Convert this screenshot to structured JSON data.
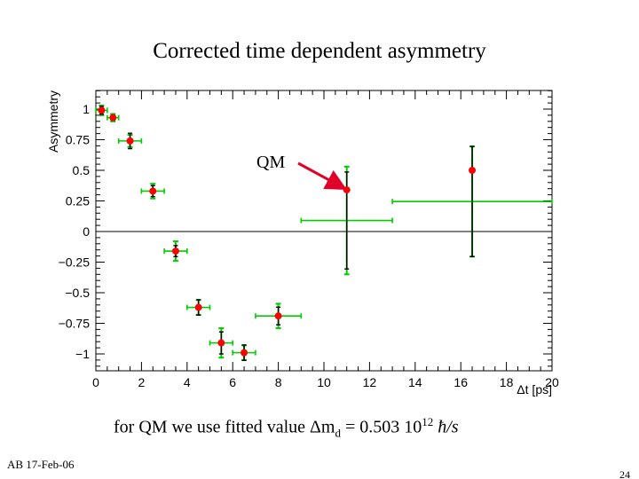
{
  "slide": {
    "title": "Corrected time dependent asymmetry",
    "caption": {
      "prefix": "for QM we use fitted value ",
      "delta": "Δm",
      "sub": "d",
      "equals": " = 0.503 10",
      "exp": "12",
      "units": " ħ/s"
    },
    "footer_left": "AB 17-Feb-06",
    "page_number": "24"
  },
  "colors": {
    "point": "#ff0000",
    "green_error": "#00cc00",
    "black_error": "#000000",
    "zero_line": "#000000",
    "arrow": "#e0002a"
  },
  "chart_data": {
    "type": "scatter",
    "title": "Corrected time dependent asymmetry",
    "xlabel": "Δt [ps]",
    "ylabel": "Asymmetry",
    "xlim": [
      0,
      20
    ],
    "ylim": [
      -1.1,
      1.15
    ],
    "x_ticks": [
      0,
      2,
      4,
      6,
      8,
      10,
      12,
      14,
      16,
      18,
      20
    ],
    "x_tick_labels": [
      "0",
      "2",
      "4",
      "6",
      "8",
      "10",
      "12",
      "14",
      "16",
      "18",
      "20"
    ],
    "y_ticks": [
      1,
      0.75,
      0.5,
      0.25,
      0,
      -0.25,
      -0.5,
      -0.75,
      -1
    ],
    "y_tick_labels": [
      "1",
      "0.75",
      "0.5",
      "0.25",
      "0",
      "−0.25",
      "−0.5",
      "−0.75",
      "−1"
    ],
    "zero_line": true,
    "points": [
      {
        "x": 0.25,
        "y": 0.99,
        "xerr": 0.25,
        "yerr_black": 0.035,
        "yerr_green": 0.04
      },
      {
        "x": 0.75,
        "y": 0.93,
        "xerr": 0.25,
        "yerr_black": 0.025,
        "yerr_green": 0.03
      },
      {
        "x": 1.5,
        "y": 0.74,
        "xerr": 0.5,
        "yerr_black": 0.07,
        "yerr_green": 0.05
      },
      {
        "x": 2.5,
        "y": 0.33,
        "xerr": 0.5,
        "yerr_black": 0.05,
        "yerr_green": 0.06
      },
      {
        "x": 3.5,
        "y": -0.16,
        "xerr": 0.5,
        "yerr_black": 0.05,
        "yerr_green": 0.08
      },
      {
        "x": 4.5,
        "y": -0.62,
        "xerr": 0.5,
        "yerr_black": 0.07,
        "yerr_green": 0.06
      },
      {
        "x": 5.5,
        "y": -0.91,
        "xerr": 0.5,
        "yerr_black": 0.1,
        "yerr_green": 0.12
      },
      {
        "x": 6.5,
        "y": -0.99,
        "xerr": 0.5,
        "yerr_black": 0.07,
        "yerr_green": 0.06
      },
      {
        "x": 8.0,
        "y": -0.69,
        "xerr": 1.0,
        "yerr_black": 0.08,
        "yerr_green": 0.1
      },
      {
        "x": 11.0,
        "y": 0.34,
        "xerr": 2.0,
        "yerr_black": 0.44,
        "yerr_green": 0.44,
        "y_err_center": 0.09
      },
      {
        "x": 16.5,
        "y": 0.5,
        "xerr": 3.5,
        "yerr_black": 0.5,
        "yerr_green": 0.45,
        "y_err_center": 0.245
      }
    ],
    "annotations": [
      {
        "text": "QM",
        "target_x": 11.0,
        "target_y": 0.34
      }
    ]
  }
}
